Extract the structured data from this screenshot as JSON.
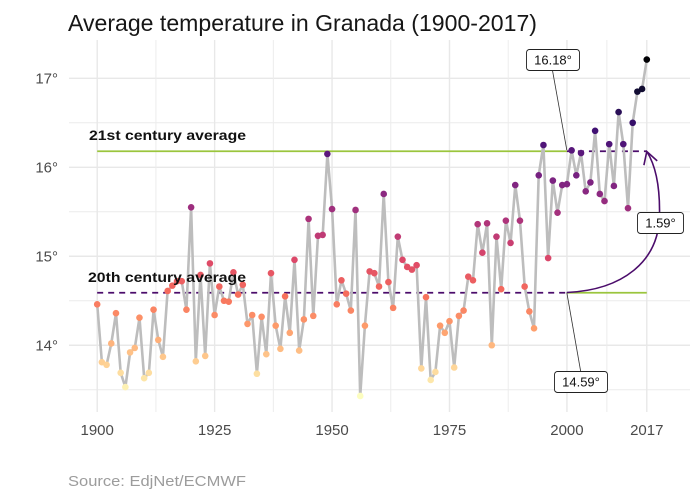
{
  "chart_data": {
    "type": "line",
    "title": "Average temperature in Granada (1900-2017)",
    "caption": "Source: EdjNet/ECMWF",
    "xlabel": "",
    "ylabel": "",
    "x": [
      1900,
      1901,
      1902,
      1903,
      1904,
      1905,
      1906,
      1907,
      1908,
      1909,
      1910,
      1911,
      1912,
      1913,
      1914,
      1915,
      1916,
      1917,
      1918,
      1919,
      1920,
      1921,
      1922,
      1923,
      1924,
      1925,
      1926,
      1927,
      1928,
      1929,
      1930,
      1931,
      1932,
      1933,
      1934,
      1935,
      1936,
      1937,
      1938,
      1939,
      1940,
      1941,
      1942,
      1943,
      1944,
      1945,
      1946,
      1947,
      1948,
      1949,
      1950,
      1951,
      1952,
      1953,
      1954,
      1955,
      1956,
      1957,
      1958,
      1959,
      1960,
      1961,
      1962,
      1963,
      1964,
      1965,
      1966,
      1967,
      1968,
      1969,
      1970,
      1971,
      1972,
      1973,
      1974,
      1975,
      1976,
      1977,
      1978,
      1979,
      1980,
      1981,
      1982,
      1983,
      1984,
      1985,
      1986,
      1987,
      1988,
      1989,
      1990,
      1991,
      1992,
      1993,
      1994,
      1995,
      1996,
      1997,
      1998,
      1999,
      2000,
      2001,
      2002,
      2003,
      2004,
      2005,
      2006,
      2007,
      2008,
      2009,
      2010,
      2011,
      2012,
      2013,
      2014,
      2015,
      2016,
      2017
    ],
    "series": [
      {
        "name": "Average temperature (°C)",
        "values": [
          14.46,
          13.81,
          13.78,
          14.02,
          14.36,
          13.69,
          13.53,
          13.92,
          13.97,
          14.31,
          13.63,
          13.69,
          14.4,
          14.06,
          13.87,
          14.61,
          14.67,
          14.72,
          14.72,
          14.4,
          15.55,
          13.82,
          14.79,
          13.88,
          14.92,
          14.34,
          14.66,
          14.5,
          14.49,
          14.82,
          14.57,
          14.68,
          14.24,
          14.34,
          13.68,
          14.32,
          13.9,
          14.81,
          14.22,
          13.96,
          14.55,
          14.14,
          14.96,
          13.94,
          14.29,
          15.42,
          14.33,
          15.23,
          15.24,
          16.15,
          15.53,
          14.46,
          14.73,
          14.58,
          14.39,
          15.52,
          13.43,
          14.22,
          14.83,
          14.81,
          14.66,
          15.7,
          14.71,
          14.42,
          15.22,
          14.96,
          14.88,
          14.85,
          14.9,
          13.74,
          14.54,
          13.61,
          13.7,
          14.22,
          14.14,
          14.27,
          13.75,
          14.33,
          14.39,
          14.77,
          14.73,
          15.36,
          15.04,
          15.37,
          14.0,
          15.22,
          14.63,
          15.4,
          15.15,
          15.8,
          15.4,
          14.66,
          14.38,
          14.19,
          15.91,
          16.25,
          14.98,
          15.85,
          15.49,
          15.8,
          15.81,
          16.19,
          15.91,
          16.16,
          15.73,
          15.83,
          16.41,
          15.7,
          15.62,
          16.26,
          15.79,
          16.62,
          16.26,
          15.54,
          16.5,
          16.85,
          16.88,
          17.21
        ]
      }
    ],
    "markers": true,
    "line_color": "#bdbdbd",
    "point_color_scale": {
      "name": "magma",
      "direction": "reversed (warmer = darker)",
      "stops": [
        "#000004",
        "#140e36",
        "#3b0f70",
        "#641a80",
        "#8c2981",
        "#b73779",
        "#de4968",
        "#f7705c",
        "#fe9f6d",
        "#fecf92",
        "#fcfdbf"
      ]
    },
    "xlim": [
      1894,
      2026.2
    ],
    "ylim": [
      13.25,
      17.43
    ],
    "x_ticks": [
      1900,
      1925,
      1950,
      1975,
      2000,
      2017
    ],
    "x_tick_labels": [
      "1900",
      "1925",
      "1950",
      "1975",
      "2000",
      "2017"
    ],
    "y_ticks": [
      14,
      15,
      16,
      17
    ],
    "y_tick_labels": [
      "14°",
      "15°",
      "16°",
      "17°"
    ],
    "grid": true,
    "legend": "none",
    "reference_lines": [
      {
        "label": "21st century average",
        "value": 16.18,
        "segments": [
          {
            "span": [
              1900,
              2000
            ],
            "style": "solid",
            "color": "#9bc53d"
          },
          {
            "span": [
              2000,
              2017
            ],
            "style": "dashed",
            "color": "#4b0c6b"
          }
        ]
      },
      {
        "label": "20th century average",
        "value": 14.59,
        "segments": [
          {
            "span": [
              1900,
              2000
            ],
            "style": "dashed",
            "color": "#4b0c6b"
          },
          {
            "span": [
              2000,
              2017
            ],
            "style": "solid",
            "color": "#9bc53d"
          }
        ]
      }
    ],
    "annotations": [
      {
        "type": "label",
        "text": "16.18°",
        "points_to": [
          2000,
          16.18
        ]
      },
      {
        "type": "label",
        "text": "14.59°",
        "points_to": [
          2000,
          14.59
        ]
      },
      {
        "type": "curved_arrow",
        "text": "1.59°",
        "from": [
          2000,
          14.59
        ],
        "to": [
          2017,
          16.18
        ],
        "color": "#4b0c6b"
      }
    ]
  }
}
